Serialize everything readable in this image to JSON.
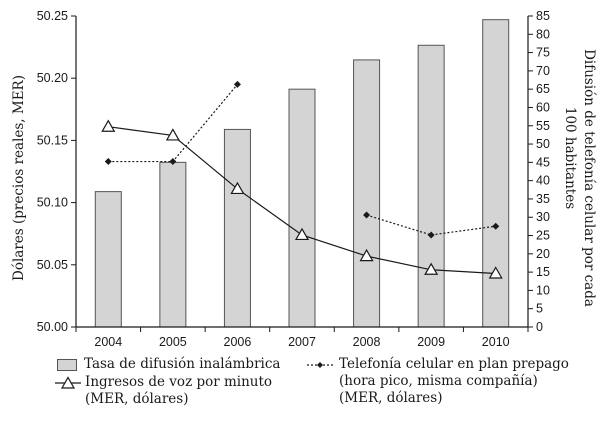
{
  "chart_data": {
    "type": "bar+line",
    "categories": [
      "2004",
      "2005",
      "2006",
      "2007",
      "2008",
      "2009",
      "2010"
    ],
    "left_axis": {
      "label": "Dólares (precios reales, MER)",
      "ylim": [
        50.0,
        50.25
      ],
      "ticks": [
        "50.00",
        "50.05",
        "50.10",
        "50.15",
        "50.20",
        "50.25"
      ]
    },
    "right_axis": {
      "label_line1": "Difusión de telefonía celular por cada",
      "label_line2": "100 habitantes",
      "ylim": [
        0,
        85
      ],
      "ticks": [
        "0",
        "5",
        "10",
        "15",
        "20",
        "25",
        "30",
        "35",
        "40",
        "45",
        "50",
        "55",
        "60",
        "65",
        "70",
        "75",
        "80",
        "85"
      ]
    },
    "series": [
      {
        "name": "Tasa de difusión inalámbrica",
        "kind": "bar",
        "axis": "right",
        "color": "#d4d4d4",
        "values": [
          37,
          45,
          54,
          65,
          73,
          77,
          84
        ]
      },
      {
        "name": "Ingresos de voz por minuto",
        "name_line2": "(MER, dólares)",
        "kind": "line",
        "marker": "triangle",
        "axis": "left",
        "values": [
          50.161,
          50.154,
          50.111,
          50.074,
          50.057,
          50.046,
          50.043
        ]
      },
      {
        "name": "Telefonía celular en plan prepago",
        "name_line2": "(hora pico, misma compañía)",
        "name_line3": "(MER, dólares)",
        "kind": "line",
        "marker": "diamond",
        "style": "dotted",
        "axis": "left",
        "values": [
          50.133,
          50.133,
          50.195,
          null,
          50.09,
          50.074,
          50.081
        ]
      }
    ]
  }
}
